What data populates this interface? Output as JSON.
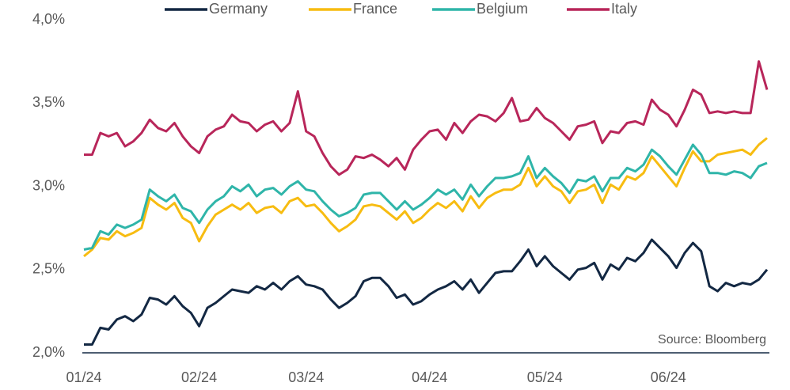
{
  "chart_data": {
    "type": "line",
    "categories": [
      "01/24",
      null,
      null,
      null,
      null,
      null,
      null,
      null,
      null,
      null,
      null,
      null,
      null,
      null,
      "02/24",
      null,
      null,
      null,
      null,
      null,
      null,
      null,
      null,
      null,
      null,
      null,
      null,
      "03/24",
      null,
      null,
      null,
      null,
      null,
      null,
      null,
      null,
      null,
      null,
      null,
      null,
      null,
      null,
      "04/24",
      null,
      null,
      null,
      null,
      null,
      null,
      null,
      null,
      null,
      null,
      null,
      null,
      null,
      "05/24",
      null,
      null,
      null,
      null,
      null,
      null,
      null,
      null,
      null,
      null,
      null,
      null,
      null,
      null,
      "06/24",
      null,
      null,
      null,
      null,
      null,
      null,
      null,
      null,
      null,
      null,
      null,
      null
    ],
    "series": [
      {
        "name": "Germany",
        "color": "#132843",
        "values": [
          2.05,
          2.05,
          2.15,
          2.14,
          2.2,
          2.22,
          2.19,
          2.23,
          2.33,
          2.32,
          2.29,
          2.34,
          2.28,
          2.24,
          2.16,
          2.27,
          2.3,
          2.34,
          2.38,
          2.37,
          2.36,
          2.4,
          2.38,
          2.42,
          2.38,
          2.43,
          2.46,
          2.41,
          2.4,
          2.38,
          2.32,
          2.27,
          2.3,
          2.34,
          2.43,
          2.45,
          2.45,
          2.4,
          2.33,
          2.35,
          2.29,
          2.31,
          2.35,
          2.38,
          2.4,
          2.43,
          2.38,
          2.44,
          2.36,
          2.42,
          2.48,
          2.49,
          2.49,
          2.55,
          2.62,
          2.52,
          2.58,
          2.52,
          2.48,
          2.44,
          2.5,
          2.51,
          2.54,
          2.44,
          2.53,
          2.5,
          2.57,
          2.55,
          2.6,
          2.68,
          2.63,
          2.58,
          2.51,
          2.6,
          2.66,
          2.61,
          2.4,
          2.37,
          2.42,
          2.4,
          2.42,
          2.41,
          2.44,
          2.5
        ]
      },
      {
        "name": "France",
        "color": "#f7bc11",
        "values": [
          2.58,
          2.62,
          2.69,
          2.68,
          2.73,
          2.7,
          2.72,
          2.75,
          2.93,
          2.89,
          2.86,
          2.9,
          2.81,
          2.78,
          2.67,
          2.76,
          2.83,
          2.86,
          2.89,
          2.86,
          2.9,
          2.84,
          2.87,
          2.88,
          2.84,
          2.91,
          2.93,
          2.88,
          2.89,
          2.84,
          2.78,
          2.73,
          2.76,
          2.8,
          2.88,
          2.89,
          2.88,
          2.84,
          2.8,
          2.85,
          2.78,
          2.81,
          2.86,
          2.9,
          2.87,
          2.91,
          2.85,
          2.94,
          2.87,
          2.93,
          2.96,
          2.98,
          2.98,
          3.01,
          3.11,
          3.0,
          3.06,
          3.0,
          2.97,
          2.9,
          2.97,
          2.98,
          3.01,
          2.9,
          3.01,
          2.98,
          3.06,
          3.04,
          3.08,
          3.18,
          3.12,
          3.06,
          3.0,
          3.11,
          3.21,
          3.15,
          3.15,
          3.19,
          3.2,
          3.21,
          3.22,
          3.19,
          3.25,
          3.29
        ]
      },
      {
        "name": "Belgium",
        "color": "#2fb5a9",
        "values": [
          2.62,
          2.63,
          2.73,
          2.71,
          2.77,
          2.75,
          2.77,
          2.8,
          2.98,
          2.94,
          2.91,
          2.95,
          2.87,
          2.85,
          2.78,
          2.86,
          2.91,
          2.94,
          3.0,
          2.97,
          3.01,
          2.94,
          2.98,
          2.99,
          2.95,
          3.0,
          3.03,
          2.98,
          2.97,
          2.91,
          2.86,
          2.82,
          2.84,
          2.87,
          2.95,
          2.96,
          2.96,
          2.91,
          2.86,
          2.91,
          2.86,
          2.89,
          2.93,
          2.98,
          2.95,
          2.98,
          2.92,
          3.01,
          2.94,
          3.0,
          3.05,
          3.05,
          3.06,
          3.08,
          3.18,
          3.05,
          3.11,
          3.06,
          3.02,
          2.96,
          3.04,
          3.03,
          3.06,
          2.97,
          3.05,
          3.05,
          3.11,
          3.09,
          3.13,
          3.22,
          3.18,
          3.12,
          3.07,
          3.16,
          3.25,
          3.19,
          3.08,
          3.08,
          3.07,
          3.09,
          3.08,
          3.05,
          3.12,
          3.14
        ]
      },
      {
        "name": "Italy",
        "color": "#b8265a",
        "values": [
          3.19,
          3.19,
          3.32,
          3.3,
          3.32,
          3.24,
          3.27,
          3.32,
          3.4,
          3.35,
          3.33,
          3.38,
          3.3,
          3.24,
          3.2,
          3.3,
          3.34,
          3.36,
          3.43,
          3.39,
          3.38,
          3.33,
          3.37,
          3.39,
          3.33,
          3.38,
          3.57,
          3.33,
          3.3,
          3.2,
          3.12,
          3.07,
          3.1,
          3.18,
          3.17,
          3.19,
          3.16,
          3.12,
          3.17,
          3.1,
          3.22,
          3.28,
          3.33,
          3.34,
          3.28,
          3.38,
          3.32,
          3.39,
          3.43,
          3.42,
          3.39,
          3.44,
          3.53,
          3.39,
          3.4,
          3.47,
          3.41,
          3.38,
          3.33,
          3.28,
          3.36,
          3.37,
          3.39,
          3.26,
          3.33,
          3.32,
          3.38,
          3.39,
          3.37,
          3.52,
          3.46,
          3.43,
          3.36,
          3.46,
          3.58,
          3.55,
          3.44,
          3.45,
          3.44,
          3.45,
          3.44,
          3.44,
          3.75,
          3.58
        ]
      }
    ],
    "ylim": [
      2.0,
      4.0
    ],
    "yticks": [
      {
        "value": 2.0,
        "label": "2,0%"
      },
      {
        "value": 2.5,
        "label": "2,5%"
      },
      {
        "value": 3.0,
        "label": "3,0%"
      },
      {
        "value": 3.5,
        "label": "3,5%"
      },
      {
        "value": 4.0,
        "label": "4,0%"
      }
    ],
    "grid": false,
    "legend": "top",
    "annotation": "Source: Bloomberg"
  }
}
